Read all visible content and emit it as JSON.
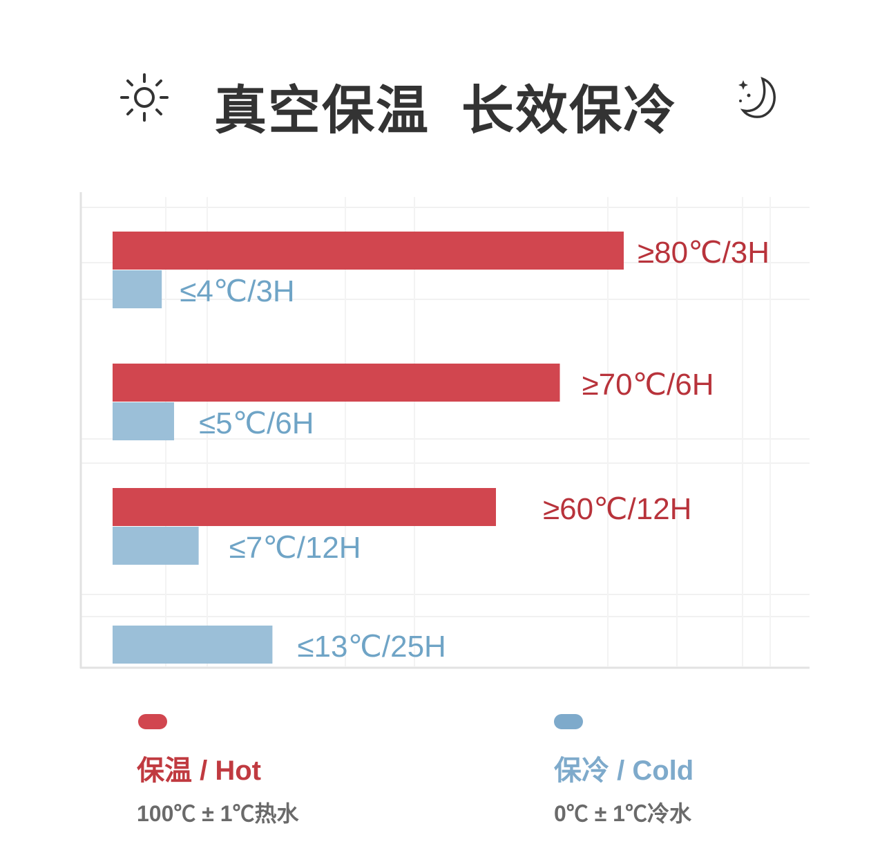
{
  "title": {
    "part1": "真空保温",
    "part2": "长效保冷",
    "left_icon": "sun-icon",
    "right_icon": "moon-stars-icon"
  },
  "colors": {
    "hot": "#d1464f",
    "hot_text": "#b8333b",
    "cold": "#9bbfd8",
    "cold_text": "#6fa4c6",
    "legend_cold": "#7eaacb"
  },
  "chart_data": {
    "type": "bar",
    "orientation": "horizontal",
    "grid": true,
    "categories": [
      "3H",
      "6H",
      "12H",
      "25H"
    ],
    "series": [
      {
        "name": "保温 / Hot",
        "values": [
          80,
          70,
          60,
          null
        ],
        "labels": [
          "≥80℃/3H",
          "≥70℃/6H",
          "≥60℃/12H",
          ""
        ]
      },
      {
        "name": "保冷 / Cold",
        "values": [
          4,
          5,
          7,
          13
        ],
        "labels": [
          "≤4℃/3H",
          "≤5℃/6H",
          "≤7℃/12H",
          "≤13℃/25H"
        ]
      }
    ],
    "legend": "bottom"
  },
  "legend": {
    "hot": {
      "title": "保温 / Hot",
      "sub": "100℃ ± 1℃热水"
    },
    "cold": {
      "title": "保冷 / Cold",
      "sub": "0℃ ± 1℃冷水"
    }
  }
}
